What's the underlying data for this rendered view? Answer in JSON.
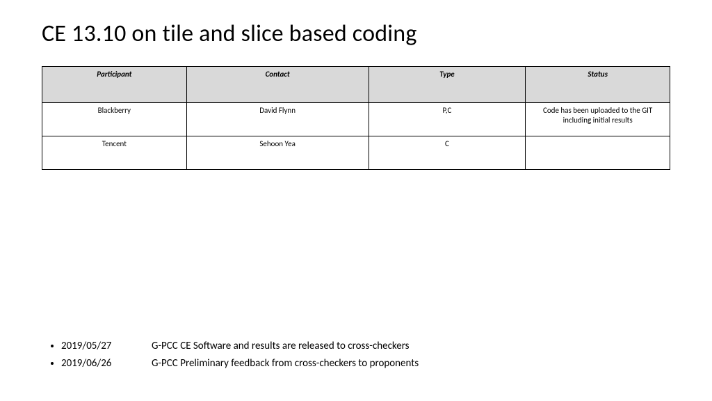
{
  "title": "CE 13.10 on tile and slice based coding",
  "table": {
    "type": "table",
    "header_bg": "#d9d9d9",
    "border_color": "#000000",
    "columns": [
      {
        "label": "Participant",
        "width_pct": 23
      },
      {
        "label": "Contact",
        "width_pct": 29
      },
      {
        "label": "Type",
        "width_pct": 25
      },
      {
        "label": "Status",
        "width_pct": 23
      }
    ],
    "rows": [
      [
        "Blackberry",
        "David Flynn",
        "P,C",
        "Code has been uploaded to the GIT including initial results"
      ],
      [
        "Tencent",
        "Sehoon Yea",
        "C",
        ""
      ]
    ],
    "header_fontsize": 11,
    "cell_fontsize": 11
  },
  "bullets": [
    {
      "date": "2019/05/27",
      "text": "G-PCC CE Software and results are released to cross-checkers"
    },
    {
      "date": "2019/06/26",
      "text": "G-PCC Preliminary feedback from cross-checkers to proponents"
    }
  ],
  "colors": {
    "background": "#ffffff",
    "text": "#000000"
  },
  "title_fontsize": 34,
  "bullet_fontsize": 15
}
